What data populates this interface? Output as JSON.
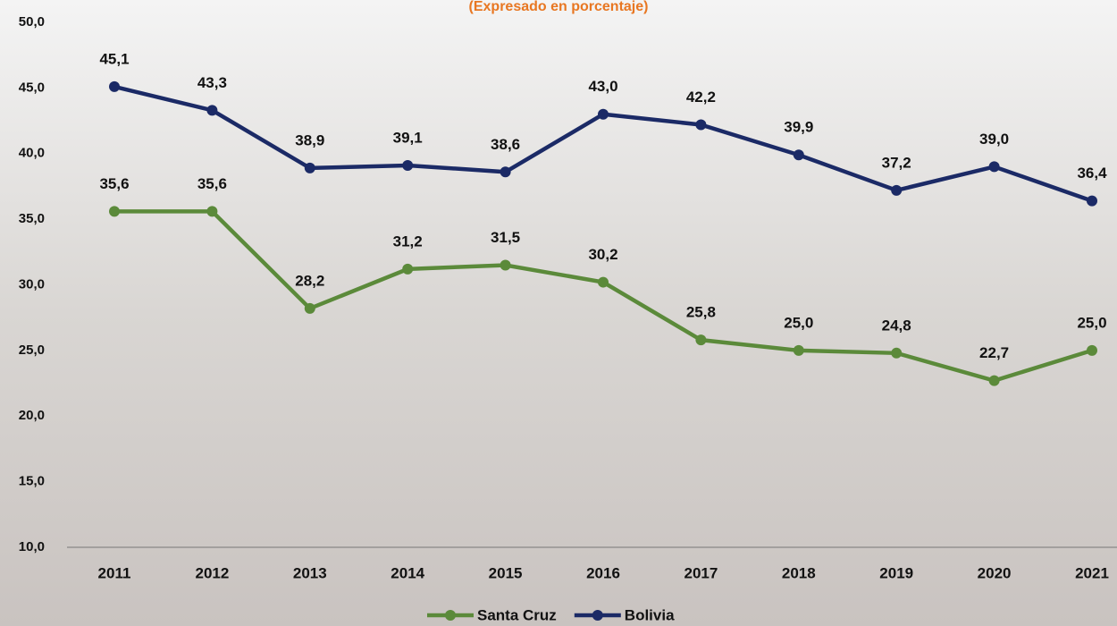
{
  "chart_data": {
    "type": "line",
    "subtitle": "(Expresado en porcentaje)",
    "categories": [
      "2011",
      "2012",
      "2013",
      "2014",
      "2015",
      "2016",
      "2017",
      "2018",
      "2019",
      "2020",
      "2021"
    ],
    "series": [
      {
        "name": "Santa Cruz",
        "color": "#5b8a3a",
        "values": [
          35.6,
          35.6,
          28.2,
          31.2,
          31.5,
          30.2,
          25.8,
          25.0,
          24.8,
          22.7,
          25.0
        ],
        "value_labels": [
          "35,6",
          "35,6",
          "28,2",
          "31,2",
          "31,5",
          "30,2",
          "25,8",
          "25,0",
          "24,8",
          "22,7",
          "25,0"
        ]
      },
      {
        "name": "Bolivia",
        "color": "#1b2a66",
        "values": [
          45.1,
          43.3,
          38.9,
          39.1,
          38.6,
          43.0,
          42.2,
          39.9,
          37.2,
          39.0,
          36.4
        ],
        "value_labels": [
          "45,1",
          "43,3",
          "38,9",
          "39,1",
          "38,6",
          "43,0",
          "42,2",
          "39,9",
          "37,2",
          "39,0",
          "36,4"
        ]
      }
    ],
    "ylim": [
      10,
      50
    ],
    "yticks": [
      {
        "value": 10,
        "label": "10,0"
      },
      {
        "value": 15,
        "label": "15,0"
      },
      {
        "value": 20,
        "label": "20,0"
      },
      {
        "value": 25,
        "label": "25,0"
      },
      {
        "value": 30,
        "label": "30,0"
      },
      {
        "value": 35,
        "label": "35,0"
      },
      {
        "value": 40,
        "label": "40,0"
      },
      {
        "value": 45,
        "label": "45,0"
      },
      {
        "value": 50,
        "label": "50,0"
      }
    ],
    "grid": false,
    "legend": "bottom"
  }
}
